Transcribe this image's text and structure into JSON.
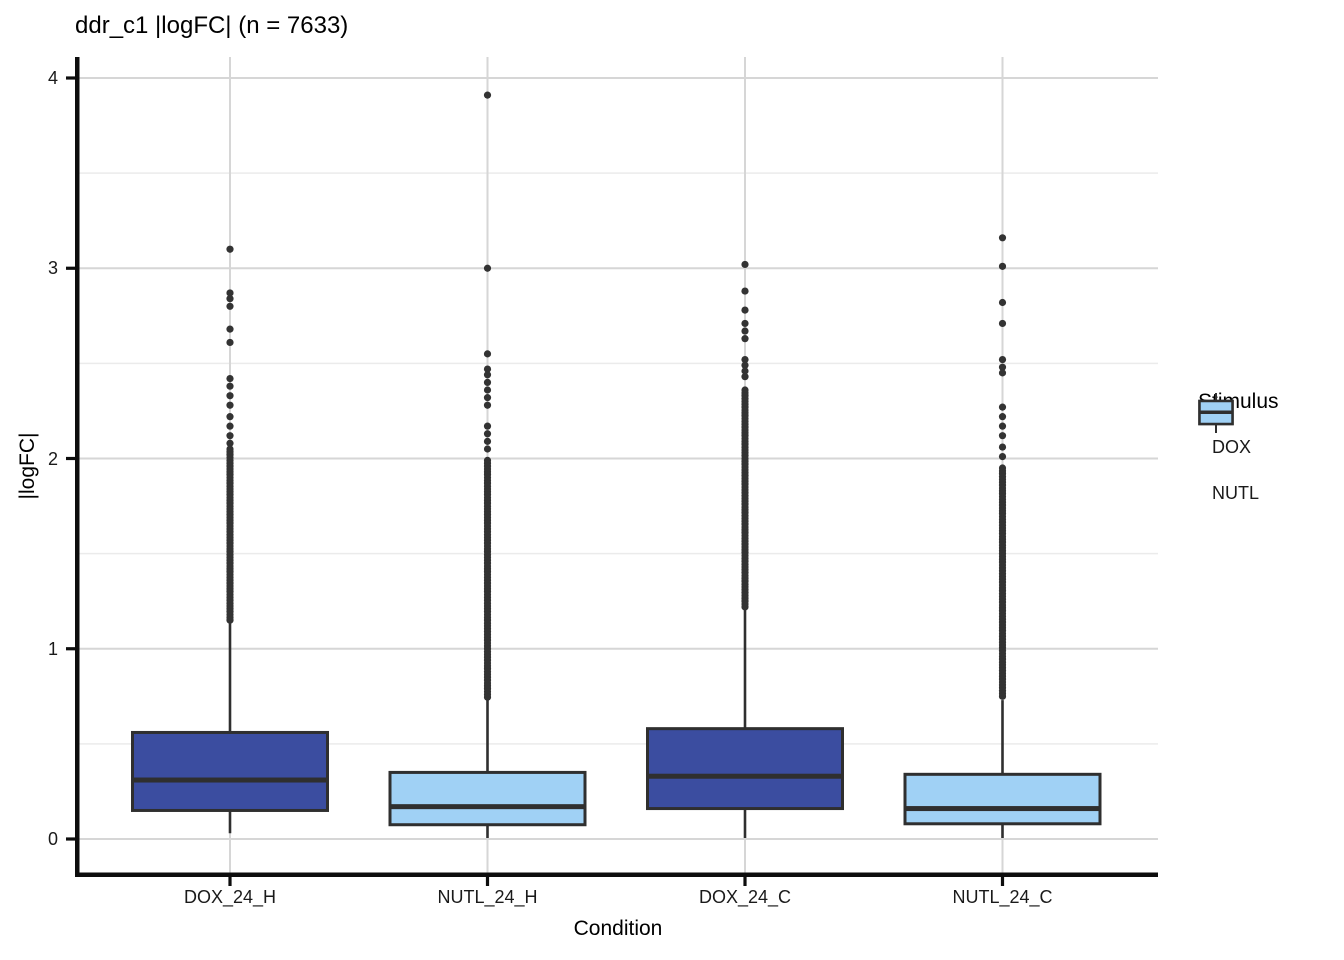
{
  "title": "ddr_c1 |logFC| (n = 7633)",
  "chart_data": {
    "type": "boxplot",
    "title": "ddr_c1 |logFC| (n = 7633)",
    "xlabel": "Condition",
    "ylabel": "|logFC|",
    "ylim": [
      0,
      4
    ],
    "yticks": [
      0,
      1,
      2,
      3,
      4
    ],
    "yminor_ticks": [
      0.5,
      1.5,
      2.5,
      3.5
    ],
    "grid": "horizontal major+minor gridlines, vertical major gridline at each category, no panel border, thick black left/bottom axes",
    "categories": [
      "DOX_24_H",
      "NUTL_24_H",
      "DOX_24_C",
      "NUTL_24_C"
    ],
    "boxes": [
      {
        "category": "DOX_24_H",
        "stimulus": "DOX",
        "color": "#3B4DA0",
        "q1": 0.15,
        "median": 0.31,
        "q3": 0.56,
        "whisker_low": 0.03,
        "whisker_high": 1.14,
        "outliers": [
          3.1,
          2.87,
          2.84,
          2.8,
          2.68,
          2.61,
          2.42,
          2.38,
          2.33,
          2.28,
          2.22,
          2.17,
          2.12,
          2.08
        ],
        "outlier_band": {
          "max": 2.05,
          "min": 1.15,
          "step": 0.015
        }
      },
      {
        "category": "NUTL_24_H",
        "stimulus": "NUTL",
        "color": "#A0D1F5",
        "q1": 0.075,
        "median": 0.17,
        "q3": 0.35,
        "whisker_low": 0.005,
        "whisker_high": 0.73,
        "outliers": [
          3.91,
          3.0,
          2.55,
          2.47,
          2.44,
          2.4,
          2.36,
          2.32,
          2.28,
          2.17,
          2.13,
          2.09,
          2.05
        ],
        "outlier_band": {
          "max": 1.99,
          "min": 0.74,
          "step": 0.015
        }
      },
      {
        "category": "DOX_24_C",
        "stimulus": "DOX",
        "color": "#3B4DA0",
        "q1": 0.16,
        "median": 0.33,
        "q3": 0.58,
        "whisker_low": 0.005,
        "whisker_high": 1.21,
        "outliers": [
          3.02,
          2.88,
          2.78,
          2.71,
          2.67,
          2.63,
          2.52,
          2.49,
          2.46,
          2.43
        ],
        "outlier_band": {
          "max": 2.36,
          "min": 1.22,
          "step": 0.015
        }
      },
      {
        "category": "NUTL_24_C",
        "stimulus": "NUTL",
        "color": "#A0D1F5",
        "q1": 0.08,
        "median": 0.16,
        "q3": 0.34,
        "whisker_low": 0.005,
        "whisker_high": 0.73,
        "outliers": [
          3.16,
          3.01,
          2.82,
          2.71,
          2.52,
          2.48,
          2.45,
          2.27,
          2.22,
          2.17,
          2.12,
          2.06,
          2.01
        ],
        "outlier_band": {
          "max": 1.95,
          "min": 0.74,
          "step": 0.015
        }
      }
    ],
    "legend": {
      "title": "Stimulus",
      "position": "right",
      "items": [
        {
          "label": "DOX",
          "color": "#3B4DA0"
        },
        {
          "label": "NUTL",
          "color": "#A0D1F5"
        }
      ]
    }
  },
  "colors": {
    "dox_fill": "#3B4DA0",
    "nutl_fill": "#A0D1F5",
    "box_stroke": "#2F2F2F",
    "outlier_dot": "#333333",
    "grid_major": "#D6D6D6",
    "grid_minor": "#EBEBEB",
    "axis_line": "#0d0d0d",
    "background": "#FFFFFF"
  }
}
